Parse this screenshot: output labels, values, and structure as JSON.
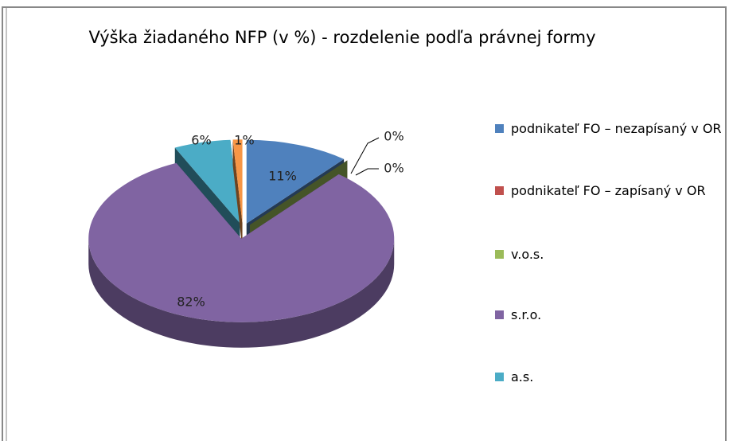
{
  "chart_data": {
    "type": "pie",
    "title": "Výška žiadaného NFP (v %) - rozdelenie podľa právnej formy",
    "categories": [
      "podnikateľ FO – nezapísaný v OR",
      "podnikateľ FO – zapísaný v OR",
      "v.o.s.",
      "s.r.o.",
      "a.s.",
      null
    ],
    "values": [
      11,
      0,
      0,
      82,
      6,
      1
    ],
    "value_labels": [
      "11%",
      "0%",
      "0%",
      "82%",
      "6%",
      "1%"
    ],
    "colors": [
      "#4f81bd",
      "#c0504d",
      "#9bbb59",
      "#8064a2",
      "#4bacc6",
      "#f79646"
    ],
    "legend": "right"
  }
}
